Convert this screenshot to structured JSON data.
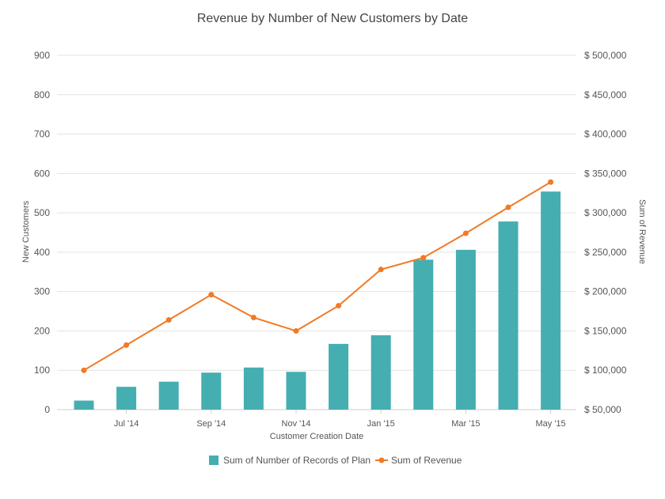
{
  "chart_data": {
    "type": "bar+line",
    "title": "Revenue by Number of New Customers by Date",
    "xlabel": "Customer Creation Date",
    "ylabel_left": "New Customers",
    "ylabel_right": "Sum of Revenue",
    "ylim_left": [
      0,
      900
    ],
    "ylim_right": [
      50000,
      500000
    ],
    "yticks_left": [
      "0",
      "100",
      "200",
      "300",
      "400",
      "500",
      "600",
      "700",
      "800",
      "900"
    ],
    "yticks_right": [
      "$ 50,000",
      "$ 100,000",
      "$ 150,000",
      "$ 200,000",
      "$ 250,000",
      "$ 300,000",
      "$ 350,000",
      "$ 400,000",
      "$ 450,000",
      "$ 500,000"
    ],
    "categories": [
      "2014-06",
      "2014-07",
      "2014-08",
      "2014-09",
      "2014-10",
      "2014-11",
      "2014-12",
      "2015-01",
      "2015-02",
      "2015-03",
      "2015-04",
      "2015-05"
    ],
    "x_tick_labels": [
      {
        "index": 1,
        "label": "Jul '14"
      },
      {
        "index": 3,
        "label": "Sep '14"
      },
      {
        "index": 5,
        "label": "Nov '14"
      },
      {
        "index": 7,
        "label": "Jan '15"
      },
      {
        "index": 9,
        "label": "Mar '15"
      },
      {
        "index": 11,
        "label": "May '15"
      }
    ],
    "grid": true,
    "legend_position": "bottom-center",
    "series": [
      {
        "name": "Sum of Number of Records of Plan",
        "type": "bar",
        "axis": "left",
        "color": "#45aeb1",
        "values": [
          23,
          58,
          71,
          94,
          107,
          96,
          167,
          189,
          381,
          406,
          478,
          554
        ]
      },
      {
        "name": "Sum of Revenue",
        "type": "line",
        "axis": "right",
        "color": "#f07a26",
        "values": [
          100000,
          132000,
          164000,
          196000,
          167000,
          150000,
          182000,
          228000,
          243000,
          274000,
          307000,
          339000
        ]
      }
    ]
  }
}
